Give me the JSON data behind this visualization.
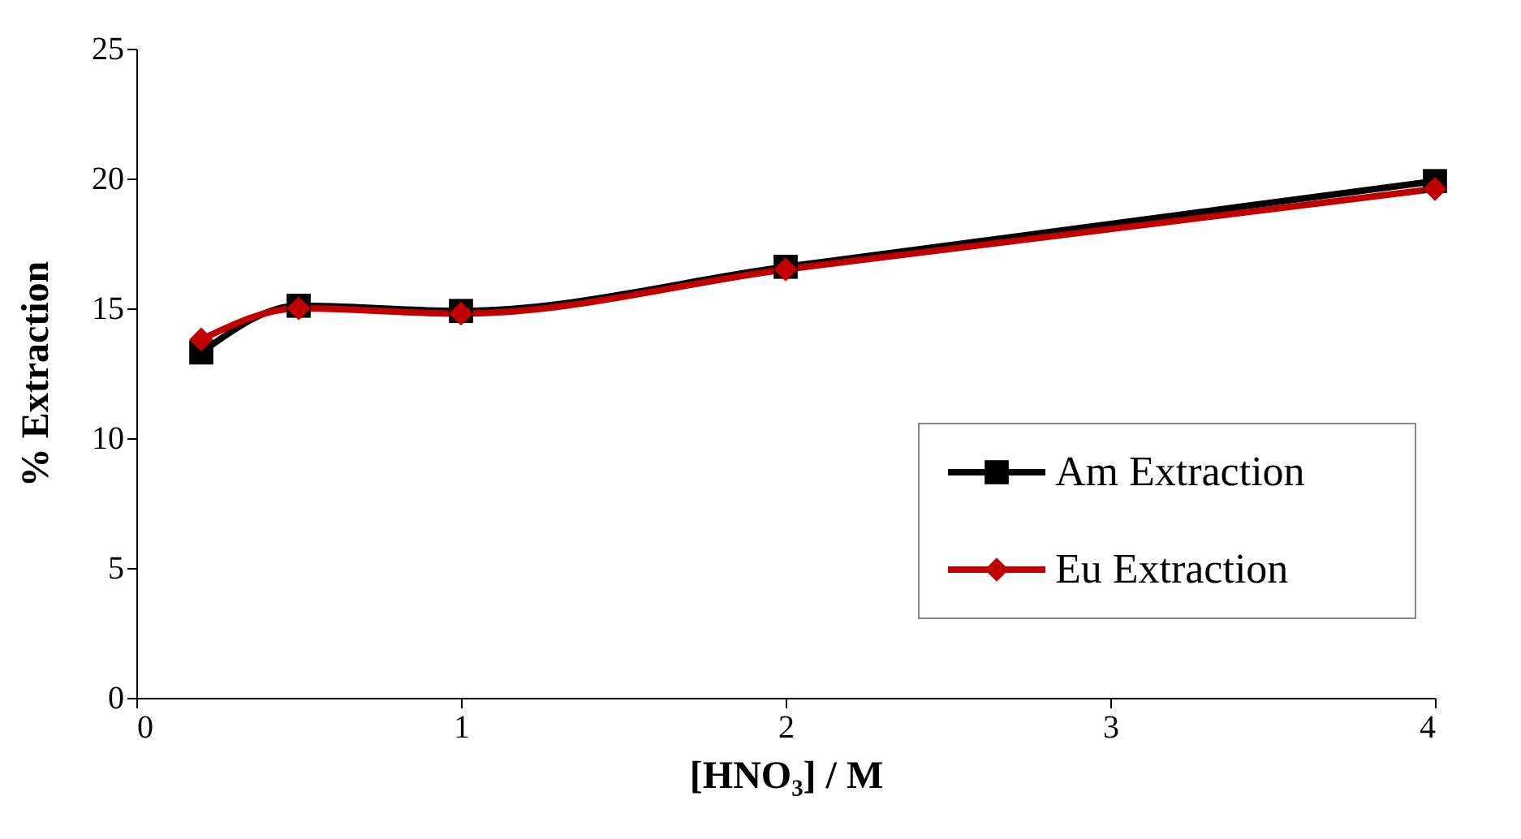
{
  "chart_data": {
    "type": "line",
    "xlabel": "[HNO₃] / M",
    "ylabel": "% Extraction",
    "x": [
      0.2,
      0.5,
      1,
      2,
      4
    ],
    "series": [
      {
        "name": "Am Extraction",
        "color": "#000000",
        "marker": "square",
        "values": [
          13.3,
          15.1,
          14.9,
          16.6,
          19.9
        ]
      },
      {
        "name": "Eu Extraction",
        "color": "#c00000",
        "marker": "diamond",
        "values": [
          13.8,
          15.0,
          14.8,
          16.5,
          19.6
        ]
      }
    ],
    "xlim": [
      0,
      4
    ],
    "xticks": [
      0,
      1,
      2,
      3,
      4
    ],
    "ylim": [
      0,
      25
    ],
    "yticks": [
      0,
      5,
      10,
      15,
      20,
      25
    ],
    "grid": false,
    "legend": "bottom right",
    "line_style": "solid"
  }
}
